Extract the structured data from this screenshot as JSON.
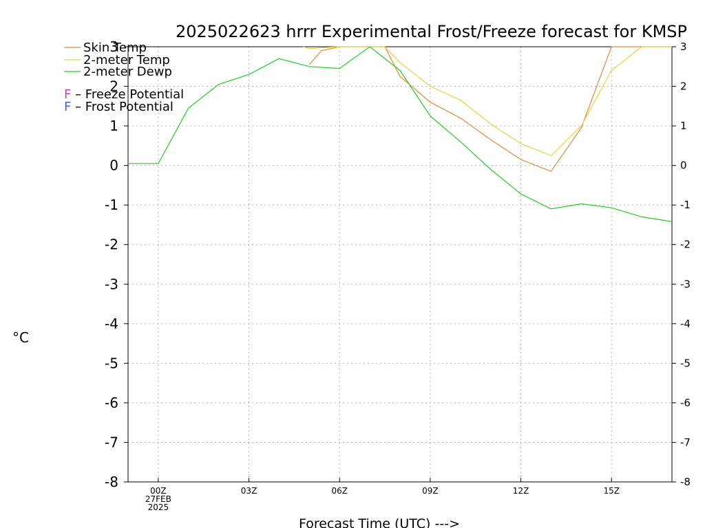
{
  "chart_data": {
    "type": "line",
    "title": "2025022623 hrrr Experimental Frost/Freeze forecast for KMSP",
    "xlabel": "Forecast Time (UTC) --->",
    "ylabel": "°C",
    "ylim": [
      -8,
      3
    ],
    "xlim": [
      -1,
      17
    ],
    "y_ticks": [
      "-8",
      "-7",
      "-6",
      "-5",
      "-4",
      "-3",
      "-2",
      "-1",
      "0",
      "1",
      "2",
      "3"
    ],
    "x_ticks": [
      {
        "hour": 0,
        "label": "00Z",
        "sub1": "27FEB",
        "sub2": "2025"
      },
      {
        "hour": 3,
        "label": "03Z"
      },
      {
        "hour": 6,
        "label": "06Z"
      },
      {
        "hour": 9,
        "label": "09Z"
      },
      {
        "hour": 12,
        "label": "12Z"
      },
      {
        "hour": 15,
        "label": "15Z"
      }
    ],
    "grid": true,
    "series": [
      {
        "name": "Skin Temp",
        "color": "#e08838",
        "points": [
          [
            5,
            2.55
          ],
          [
            5.4,
            2.9
          ],
          [
            6,
            3.0
          ],
          [
            7.5,
            3.0
          ],
          [
            8,
            2.25
          ],
          [
            9,
            1.6
          ],
          [
            10,
            1.2
          ],
          [
            11,
            0.65
          ],
          [
            12,
            0.15
          ],
          [
            13,
            -0.15
          ],
          [
            14,
            0.95
          ],
          [
            15,
            3.0
          ],
          [
            17,
            3.0
          ]
        ]
      },
      {
        "name": "2-meter Temp",
        "color": "#e8d040",
        "points": [
          [
            4.8,
            3.0
          ],
          [
            5,
            2.95
          ],
          [
            5.5,
            2.98
          ],
          [
            6,
            3.0
          ],
          [
            7.5,
            3.0
          ],
          [
            8,
            2.6
          ],
          [
            9,
            2.0
          ],
          [
            10,
            1.65
          ],
          [
            11,
            1.05
          ],
          [
            12,
            0.55
          ],
          [
            13,
            0.25
          ],
          [
            14,
            1.0
          ],
          [
            15,
            2.4
          ],
          [
            16,
            3.0
          ],
          [
            17,
            3.0
          ]
        ]
      },
      {
        "name": "2-meter Dewp",
        "color": "#20cc20",
        "points": [
          [
            -1,
            0.05
          ],
          [
            0,
            0.05
          ],
          [
            1,
            1.45
          ],
          [
            2,
            2.05
          ],
          [
            3,
            2.3
          ],
          [
            4,
            2.7
          ],
          [
            5,
            2.5
          ],
          [
            6,
            2.45
          ],
          [
            7,
            3.0
          ],
          [
            8,
            2.4
          ],
          [
            9,
            1.25
          ],
          [
            10,
            0.6
          ],
          [
            11,
            -0.1
          ],
          [
            12,
            -0.72
          ],
          [
            13,
            -1.1
          ],
          [
            14,
            -0.97
          ],
          [
            15,
            -1.07
          ],
          [
            16,
            -1.3
          ],
          [
            17,
            -1.42
          ]
        ]
      }
    ]
  },
  "legend": {
    "potentials": [
      {
        "letter": "F",
        "text": " – Freeze Potential",
        "color": "#c040c0"
      },
      {
        "letter": "F",
        "text": " – Frost Potential",
        "color": "#4060e0"
      }
    ]
  }
}
